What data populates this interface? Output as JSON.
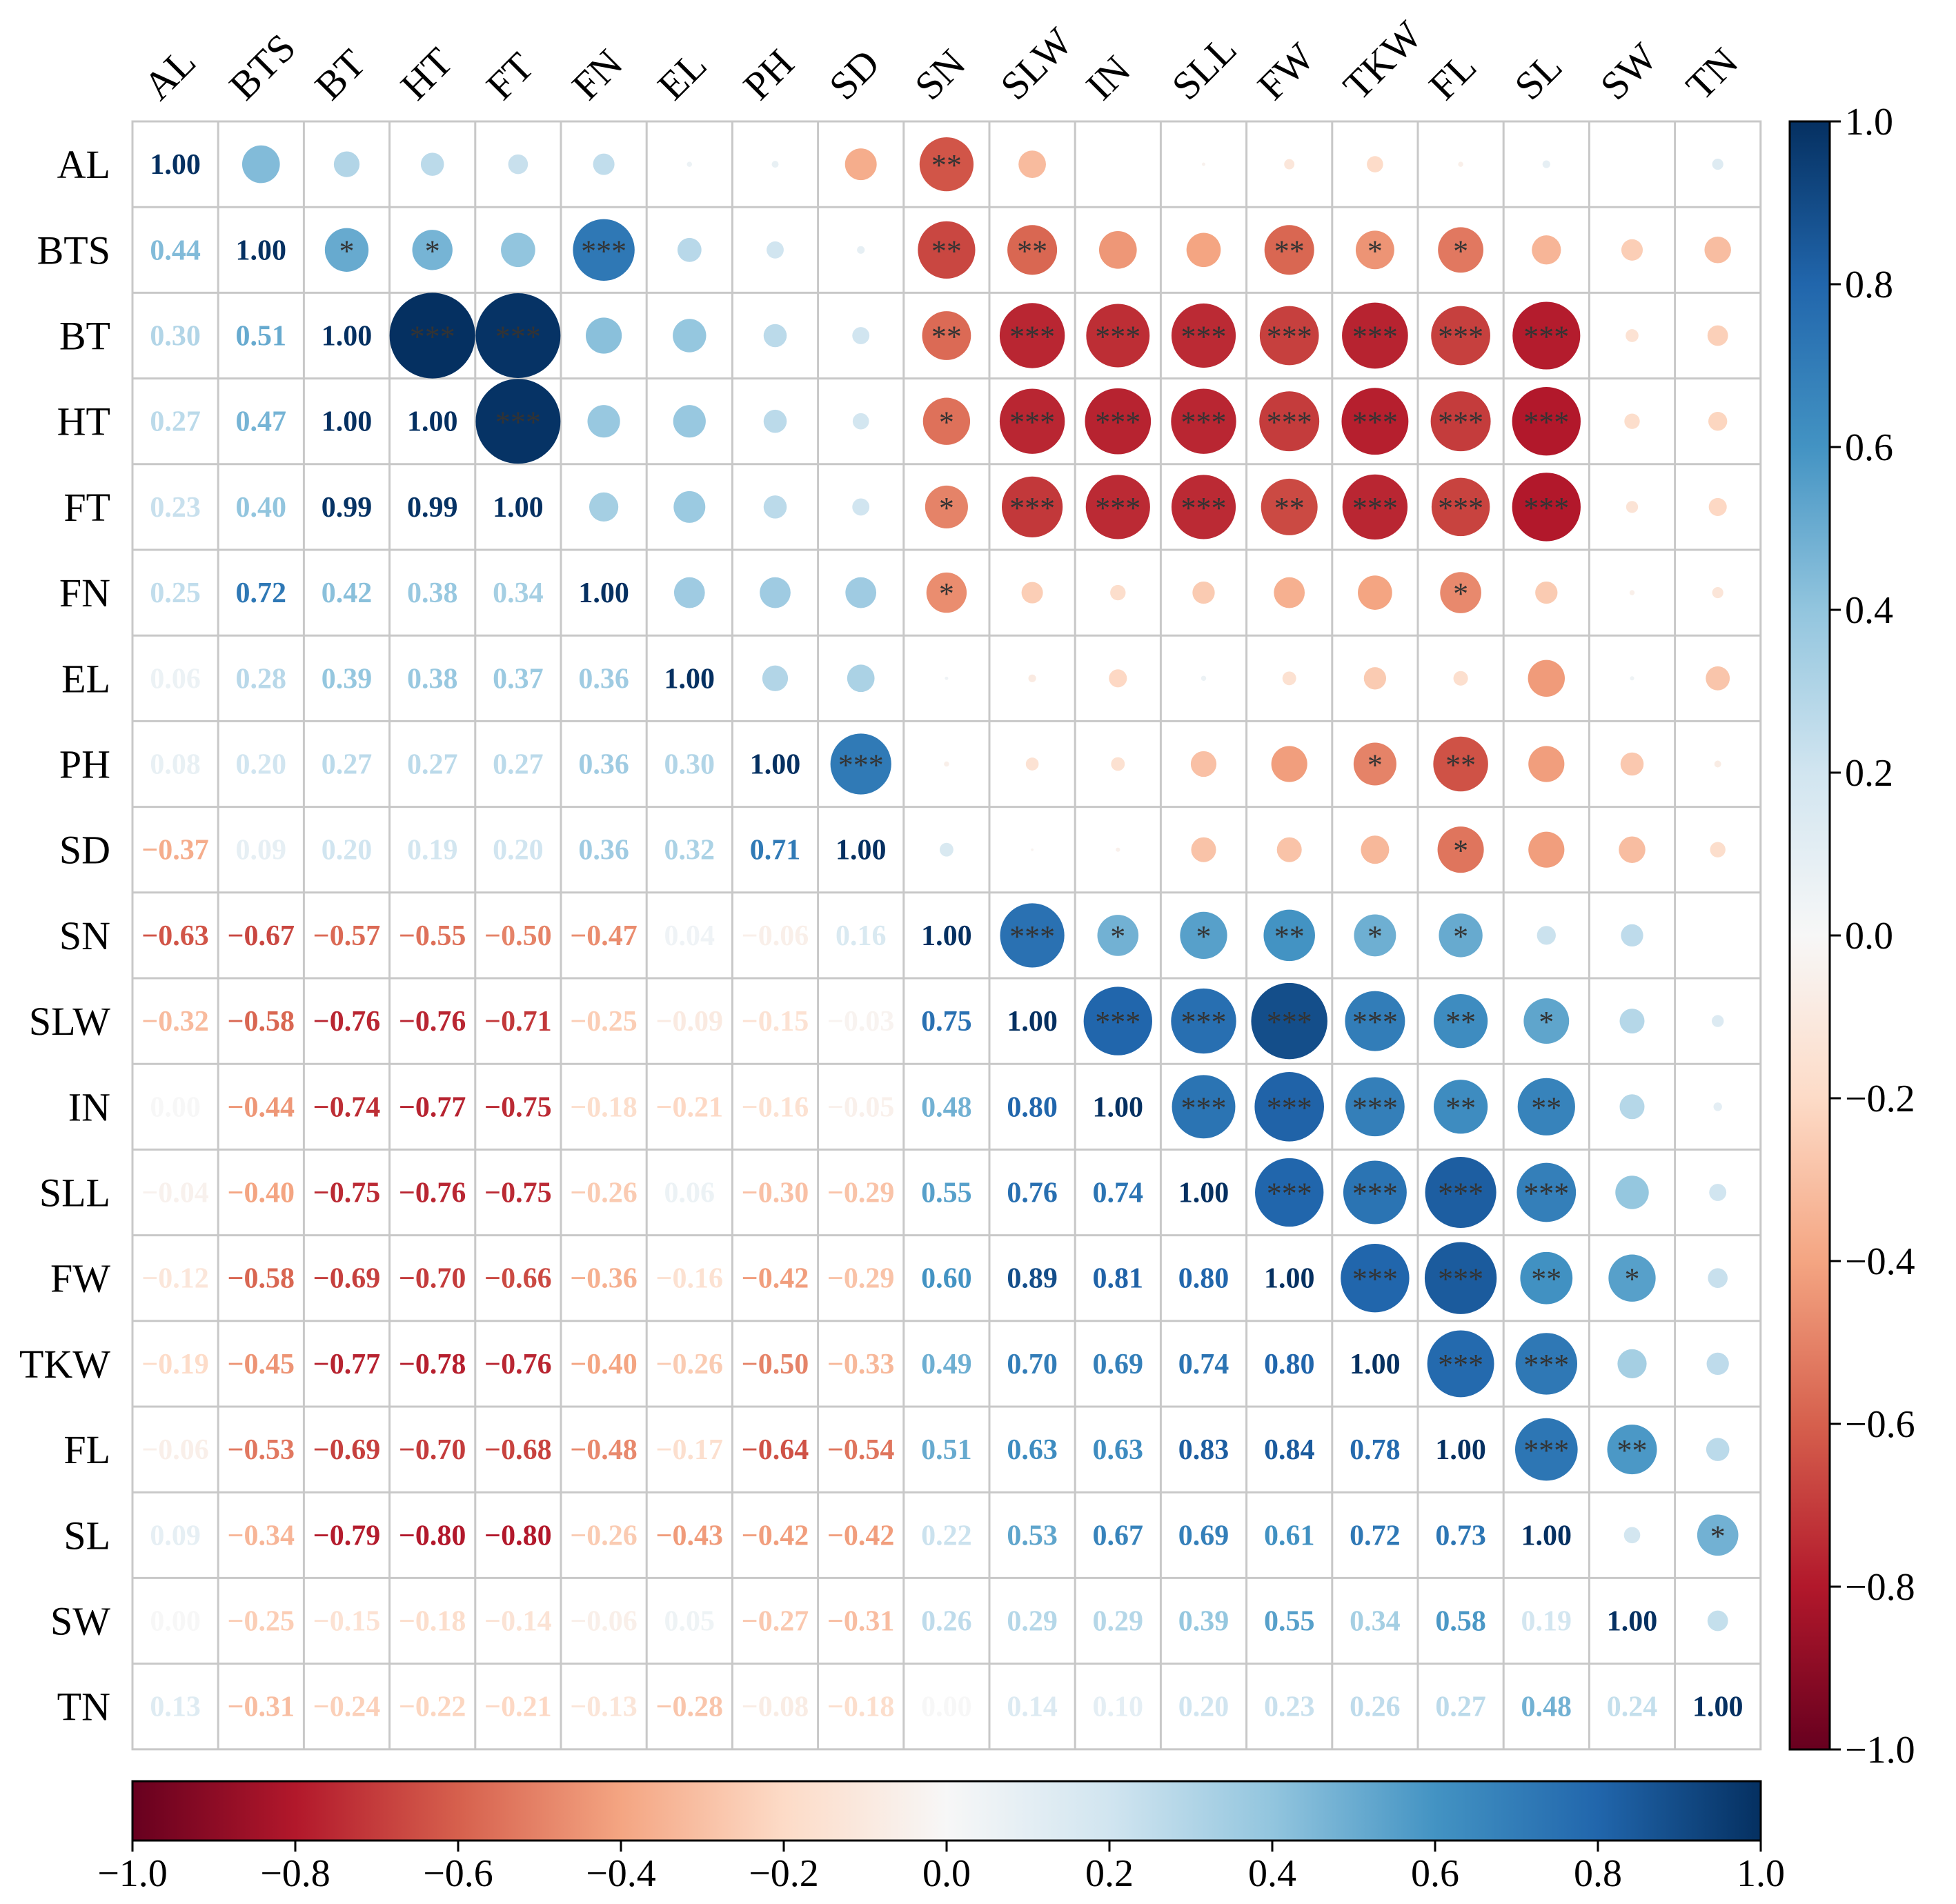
{
  "chart_data": {
    "type": "heatmap",
    "style": "correlation matrix: lower triangle shows coefficients, upper triangle shows circles sized/colored by coefficient with significance stars",
    "variables": [
      "AL",
      "BTS",
      "BT",
      "HT",
      "FT",
      "FN",
      "EL",
      "PH",
      "SD",
      "SN",
      "SLW",
      "IN",
      "SLL",
      "FW",
      "TKW",
      "FL",
      "SL",
      "SW",
      "TN"
    ],
    "matrix": [
      [
        1.0,
        0.44,
        0.3,
        0.27,
        0.23,
        0.25,
        0.06,
        0.08,
        -0.37,
        -0.63,
        -0.32,
        0.0,
        -0.04,
        -0.12,
        -0.19,
        -0.06,
        0.09,
        0.0,
        0.13
      ],
      [
        0.44,
        1.0,
        0.51,
        0.47,
        0.4,
        0.72,
        0.28,
        0.2,
        0.09,
        -0.67,
        -0.58,
        -0.44,
        -0.4,
        -0.58,
        -0.45,
        -0.53,
        -0.34,
        -0.25,
        -0.31
      ],
      [
        0.3,
        0.51,
        1.0,
        1.0,
        0.99,
        0.42,
        0.39,
        0.27,
        0.2,
        -0.57,
        -0.76,
        -0.74,
        -0.75,
        -0.69,
        -0.77,
        -0.69,
        -0.79,
        -0.15,
        -0.24
      ],
      [
        0.27,
        0.47,
        1.0,
        1.0,
        0.99,
        0.38,
        0.38,
        0.27,
        0.19,
        -0.55,
        -0.76,
        -0.77,
        -0.76,
        -0.7,
        -0.78,
        -0.7,
        -0.8,
        -0.18,
        -0.22
      ],
      [
        0.23,
        0.4,
        0.99,
        0.99,
        1.0,
        0.34,
        0.37,
        0.27,
        0.2,
        -0.5,
        -0.71,
        -0.75,
        -0.75,
        -0.66,
        -0.76,
        -0.68,
        -0.8,
        -0.14,
        -0.21
      ],
      [
        0.25,
        0.72,
        0.42,
        0.38,
        0.34,
        1.0,
        0.36,
        0.36,
        0.36,
        -0.47,
        -0.25,
        -0.18,
        -0.26,
        -0.36,
        -0.4,
        -0.48,
        -0.26,
        -0.06,
        -0.13
      ],
      [
        0.06,
        0.28,
        0.39,
        0.38,
        0.37,
        0.36,
        1.0,
        0.3,
        0.32,
        0.04,
        -0.09,
        -0.21,
        0.06,
        -0.16,
        -0.26,
        -0.17,
        -0.43,
        0.05,
        -0.28
      ],
      [
        0.08,
        0.2,
        0.27,
        0.27,
        0.27,
        0.36,
        0.3,
        1.0,
        0.71,
        -0.06,
        -0.15,
        -0.16,
        -0.3,
        -0.42,
        -0.5,
        -0.64,
        -0.42,
        -0.27,
        -0.08
      ],
      [
        -0.37,
        0.09,
        0.2,
        0.19,
        0.2,
        0.36,
        0.32,
        0.71,
        1.0,
        0.16,
        -0.03,
        -0.05,
        -0.29,
        -0.29,
        -0.33,
        -0.54,
        -0.42,
        -0.31,
        -0.18
      ],
      [
        -0.63,
        -0.67,
        -0.57,
        -0.55,
        -0.5,
        -0.47,
        0.04,
        -0.06,
        0.16,
        1.0,
        0.75,
        0.48,
        0.55,
        0.6,
        0.49,
        0.51,
        0.22,
        0.26,
        0.0
      ],
      [
        -0.32,
        -0.58,
        -0.76,
        -0.76,
        -0.71,
        -0.25,
        -0.09,
        -0.15,
        -0.03,
        0.75,
        1.0,
        0.8,
        0.76,
        0.89,
        0.7,
        0.63,
        0.53,
        0.29,
        0.14
      ],
      [
        0.0,
        -0.44,
        -0.74,
        -0.77,
        -0.75,
        -0.18,
        -0.21,
        -0.16,
        -0.05,
        0.48,
        0.8,
        1.0,
        0.74,
        0.81,
        0.69,
        0.63,
        0.67,
        0.29,
        0.1
      ],
      [
        -0.04,
        -0.4,
        -0.75,
        -0.76,
        -0.75,
        -0.26,
        0.06,
        -0.3,
        -0.29,
        0.55,
        0.76,
        0.74,
        1.0,
        0.8,
        0.74,
        0.83,
        0.69,
        0.39,
        0.2
      ],
      [
        -0.12,
        -0.58,
        -0.69,
        -0.7,
        -0.66,
        -0.36,
        -0.16,
        -0.42,
        -0.29,
        0.6,
        0.89,
        0.81,
        0.8,
        1.0,
        0.8,
        0.84,
        0.61,
        0.55,
        0.23
      ],
      [
        -0.19,
        -0.45,
        -0.77,
        -0.78,
        -0.76,
        -0.4,
        -0.26,
        -0.5,
        -0.33,
        0.49,
        0.7,
        0.69,
        0.74,
        0.8,
        1.0,
        0.78,
        0.72,
        0.34,
        0.26
      ],
      [
        -0.06,
        -0.53,
        -0.69,
        -0.7,
        -0.68,
        -0.48,
        -0.17,
        -0.64,
        -0.54,
        0.51,
        0.63,
        0.63,
        0.83,
        0.84,
        0.78,
        1.0,
        0.73,
        0.58,
        0.27
      ],
      [
        0.09,
        -0.34,
        -0.79,
        -0.8,
        -0.8,
        -0.26,
        -0.43,
        -0.42,
        -0.42,
        0.22,
        0.53,
        0.67,
        0.69,
        0.61,
        0.72,
        0.73,
        1.0,
        0.19,
        0.48
      ],
      [
        0.0,
        -0.25,
        -0.15,
        -0.18,
        -0.14,
        -0.06,
        0.05,
        -0.27,
        -0.31,
        0.26,
        0.29,
        0.29,
        0.39,
        0.55,
        0.34,
        0.58,
        0.19,
        1.0,
        0.24
      ],
      [
        0.13,
        -0.31,
        -0.24,
        -0.22,
        -0.21,
        -0.13,
        -0.28,
        -0.08,
        -0.18,
        0.0,
        0.14,
        0.1,
        0.2,
        0.23,
        0.26,
        0.27,
        0.48,
        0.24,
        1.0
      ]
    ],
    "significance": [
      [
        "",
        "",
        "",
        "",
        "",
        "",
        "",
        "",
        "",
        "**",
        "",
        "",
        "",
        "",
        "",
        "",
        "",
        "",
        ""
      ],
      [
        "",
        "",
        "*",
        "*",
        "",
        "***",
        "",
        "",
        "",
        "**",
        "**",
        "",
        "",
        "**",
        "*",
        "*",
        "",
        "",
        ""
      ],
      [
        "",
        "",
        "",
        "***",
        "***",
        "",
        "",
        "",
        "",
        "**",
        "***",
        "***",
        "***",
        "***",
        "***",
        "***",
        "***",
        "",
        ""
      ],
      [
        "",
        "",
        "",
        "",
        "***",
        "",
        "",
        "",
        "",
        "*",
        "***",
        "***",
        "***",
        "***",
        "***",
        "***",
        "***",
        "",
        ""
      ],
      [
        "",
        "",
        "",
        "",
        "",
        "",
        "",
        "",
        "",
        "*",
        "***",
        "***",
        "***",
        "**",
        "***",
        "***",
        "***",
        "",
        ""
      ],
      [
        "",
        "",
        "",
        "",
        "",
        "",
        "",
        "",
        "",
        "*",
        "",
        "",
        "",
        "",
        "",
        "*",
        "",
        "",
        ""
      ],
      [
        "",
        "",
        "",
        "",
        "",
        "",
        "",
        "",
        "",
        "",
        "",
        "",
        "",
        "",
        "",
        "",
        "",
        "",
        ""
      ],
      [
        "",
        "",
        "",
        "",
        "",
        "",
        "",
        "",
        "***",
        "",
        "",
        "",
        "",
        "",
        "*",
        "**",
        "",
        "",
        ""
      ],
      [
        "",
        "",
        "",
        "",
        "",
        "",
        "",
        "",
        "",
        "",
        "",
        "",
        "",
        "",
        "",
        "*",
        "",
        "",
        ""
      ],
      [
        "",
        "",
        "",
        "",
        "",
        "",
        "",
        "",
        "",
        "",
        "***",
        "*",
        "*",
        "**",
        "*",
        "*",
        "",
        "",
        ""
      ],
      [
        "",
        "",
        "",
        "",
        "",
        "",
        "",
        "",
        "",
        "",
        "",
        "***",
        "***",
        "***",
        "***",
        "**",
        "*",
        "",
        ""
      ],
      [
        "",
        "",
        "",
        "",
        "",
        "",
        "",
        "",
        "",
        "",
        "",
        "",
        "***",
        "***",
        "***",
        "**",
        "**",
        "",
        ""
      ],
      [
        "",
        "",
        "",
        "",
        "",
        "",
        "",
        "",
        "",
        "",
        "",
        "",
        "",
        "***",
        "***",
        "***",
        "***",
        "",
        ""
      ],
      [
        "",
        "",
        "",
        "",
        "",
        "",
        "",
        "",
        "",
        "",
        "",
        "",
        "",
        "",
        "***",
        "***",
        "**",
        "*",
        ""
      ],
      [
        "",
        "",
        "",
        "",
        "",
        "",
        "",
        "",
        "",
        "",
        "",
        "",
        "",
        "",
        "",
        "***",
        "***",
        "",
        ""
      ],
      [
        "",
        "",
        "",
        "",
        "",
        "",
        "",
        "",
        "",
        "",
        "",
        "",
        "",
        "",
        "",
        "",
        "***",
        "**",
        ""
      ],
      [
        "",
        "",
        "",
        "",
        "",
        "",
        "",
        "",
        "",
        "",
        "",
        "",
        "",
        "",
        "",
        "",
        "",
        "",
        "*"
      ],
      [
        "",
        "",
        "",
        "",
        "",
        "",
        "",
        "",
        "",
        "",
        "",
        "",
        "",
        "",
        "",
        "",
        "",
        "",
        ""
      ],
      [
        "",
        "",
        "",
        "",
        "",
        "",
        "",
        "",
        "",
        "",
        "",
        "",
        "",
        "",
        "",
        "",
        "",
        "",
        ""
      ]
    ],
    "colorbar": {
      "range": [
        -1.0,
        1.0
      ],
      "ticks": [
        "−1.0",
        "−0.8",
        "−0.6",
        "−0.4",
        "−0.2",
        "0.0",
        "0.2",
        "0.4",
        "0.6",
        "0.8",
        "1.0"
      ],
      "colormap": "RdBu",
      "stops": [
        "#67001f",
        "#b2182b",
        "#d6604d",
        "#f4a582",
        "#fddbc7",
        "#f7f7f7",
        "#d1e5f0",
        "#92c5de",
        "#4393c3",
        "#2166ac",
        "#053061"
      ],
      "orientations": [
        "vertical-right",
        "horizontal-bottom"
      ]
    },
    "title": "",
    "xlabel": "",
    "ylabel": ""
  }
}
